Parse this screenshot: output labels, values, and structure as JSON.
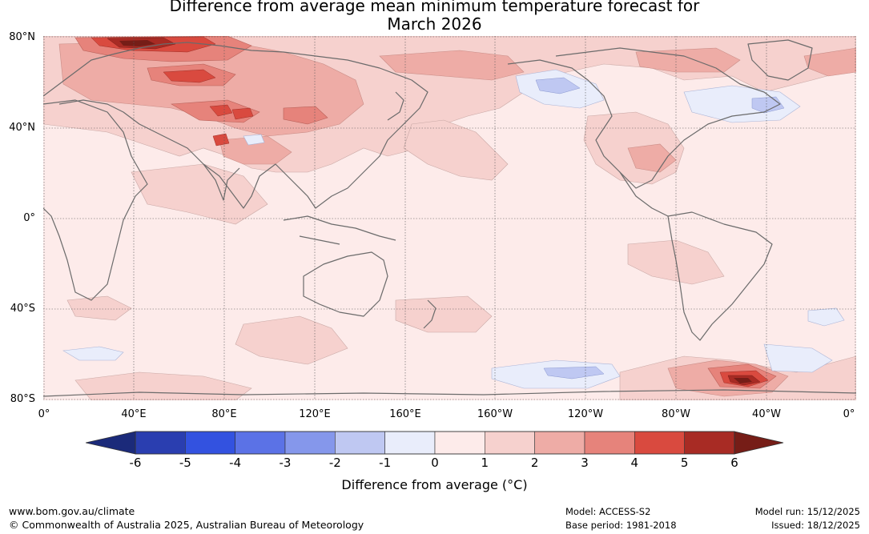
{
  "title": {
    "line1": "Difference from average mean minimum temperature forecast for",
    "line2": "March 2026"
  },
  "map": {
    "lat_labels": [
      "80°N",
      "40°N",
      "0°",
      "40°S",
      "80°S"
    ],
    "lon_labels": [
      "0°",
      "40°E",
      "80°E",
      "120°E",
      "160°E",
      "160°W",
      "120°W",
      "80°W",
      "40°W",
      "0°"
    ]
  },
  "colorbar": {
    "ticks": [
      "-6",
      "-5",
      "-4",
      "-3",
      "-2",
      "-1",
      "0",
      "1",
      "2",
      "3",
      "4",
      "5",
      "6"
    ],
    "colors": {
      "extend_low": "#1b2a7a",
      "bins": [
        "#2a3eb0",
        "#3352e0",
        "#5b72e6",
        "#8597eb",
        "#bfc8f2",
        "#e9edfb",
        "#fdebea",
        "#f6d1ce",
        "#eeaca6",
        "#e6837b",
        "#d94a3f",
        "#a82b24"
      ],
      "extend_high": "#761d17"
    },
    "label": "Difference from average (°C)"
  },
  "footer": {
    "website": "www.bom.gov.au/climate",
    "copyright": "© Commonwealth of Australia 2025, Australian Bureau of Meteorology",
    "model": "Model: ACCESS-S2",
    "base_period": "Base period: 1981-2018",
    "model_run": "Model run: 15/12/2025",
    "issued": "Issued: 18/12/2025"
  }
}
